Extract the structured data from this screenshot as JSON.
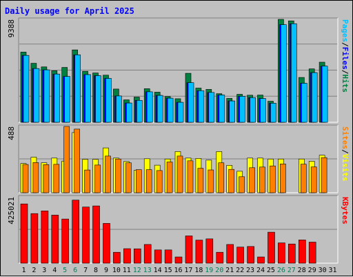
{
  "chart_data": {
    "type": "bar",
    "title": "Daily usage for April 2025",
    "categories": [
      "1",
      "2",
      "3",
      "4",
      "5",
      "6",
      "7",
      "8",
      "9",
      "10",
      "11",
      "12",
      "13",
      "14",
      "15",
      "16",
      "17",
      "18",
      "19",
      "20",
      "21",
      "22",
      "23",
      "24",
      "25",
      "26",
      "27",
      "28",
      "29",
      "30",
      "31"
    ],
    "weekend_days": [
      "5",
      "6",
      "12",
      "13",
      "19",
      "20",
      "26",
      "27"
    ],
    "colors": {
      "title": "#0000ff",
      "hits": "#008040",
      "files": "#00c0ff",
      "pages": "#00c0ff",
      "visits": "#ffff00",
      "sites": "#ff8000",
      "kbytes": "#ff0000",
      "weekday_label": "#000000",
      "weekend_label": "#00805c",
      "panel_bg": "#c0c0c0"
    },
    "panels": [
      {
        "id": "hits",
        "ymax_label": "9388",
        "ymax": 9388,
        "right_labels": [
          {
            "text": "Pages",
            "color": "#00c0ff"
          },
          {
            "text": "/",
            "color": "#000000"
          },
          {
            "text": "Files",
            "color": "#0000ff"
          },
          {
            "text": "/",
            "color": "#000000"
          },
          {
            "text": "Hits",
            "color": "#008040"
          }
        ],
        "series": [
          {
            "name": "Hits",
            "color": "#008040",
            "values": [
              6400,
              5380,
              5050,
              4700,
              5000,
              6600,
              4650,
              4500,
              4300,
              3030,
              2050,
              2300,
              3060,
              2750,
              2350,
              2150,
              4470,
              3120,
              3000,
              2610,
              2180,
              2550,
              2470,
              2480,
              1920,
              9388,
              9250,
              4090,
              4870,
              5480,
              0
            ]
          },
          {
            "name": "Files",
            "color": "#0000ff",
            "values": [
              6100,
              4900,
              4780,
              4400,
              4180,
              6150,
              4350,
              4250,
              4000,
              2400,
              1760,
              2000,
              2780,
              2450,
              2200,
              1820,
              3610,
              2880,
              2720,
              2490,
              1950,
              2370,
              2250,
              2170,
              1740,
              8900,
              8990,
              3560,
              4530,
              5120,
              0
            ]
          },
          {
            "name": "Pages",
            "color": "#00c0ff",
            "values": [
              6100,
              4900,
              4780,
              4400,
              4180,
              6150,
              4350,
              4250,
              4000,
              2400,
              1760,
              2000,
              2780,
              2450,
              2200,
              1820,
              3610,
              2880,
              2720,
              2490,
              1950,
              2370,
              2250,
              2170,
              1740,
              8900,
              8990,
              3560,
              4530,
              5120,
              0
            ]
          }
        ]
      },
      {
        "id": "visits",
        "ymax_label": "488",
        "ymax": 488,
        "right_labels": [
          {
            "text": "Sites",
            "color": "#ff8000"
          },
          {
            "text": "/",
            "color": "#000000"
          },
          {
            "text": "Visits",
            "color": "#ffff00"
          }
        ],
        "series": [
          {
            "name": "Visits",
            "color": "#ffff00",
            "values": [
              215,
              262,
              220,
              255,
              233,
              443,
              246,
              246,
              330,
              255,
              230,
              165,
              250,
              203,
              248,
              303,
              255,
              252,
              240,
              303,
              202,
              158,
              255,
              255,
              248,
              248,
              0,
              248,
              232,
              276,
              0
            ]
          },
          {
            "name": "Sites",
            "color": "#ff8000",
            "values": [
              208,
              222,
              207,
              209,
              488,
              468,
              167,
              204,
              270,
              248,
              220,
              170,
              170,
              163,
              226,
              270,
              235,
              180,
              168,
              220,
              172,
              118,
              184,
              189,
              197,
              212,
              0,
              210,
              190,
              258,
              0
            ]
          }
        ]
      },
      {
        "id": "kbytes",
        "ymax_label": "425021",
        "ymax": 425021,
        "right_labels": [
          {
            "text": "KBytes",
            "color": "#ff0000"
          }
        ],
        "series": [
          {
            "name": "KBytes",
            "color": "#ff0000",
            "values": [
              380000,
              318000,
              335000,
              308000,
              283000,
              404000,
              360000,
              367000,
              255000,
              70000,
              93000,
              92000,
              120000,
              85000,
              85000,
              40000,
              175000,
              148000,
              156000,
              70000,
              120000,
              103000,
              107000,
              40000,
              199000,
              130000,
              123000,
              149000,
              135000,
              0,
              0
            ]
          }
        ]
      }
    ]
  }
}
